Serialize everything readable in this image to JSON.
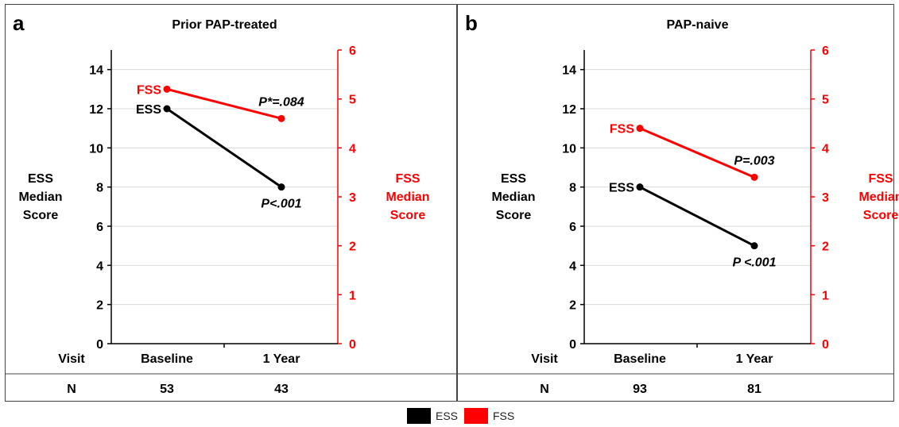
{
  "colors": {
    "ess": "#000000",
    "fss": "#ff0000",
    "grid": "#d9d9d9",
    "frame": "#444444"
  },
  "row_labels": {
    "visit": "Visit",
    "n": "N"
  },
  "legend": [
    {
      "name": "ESS",
      "color": "#000000"
    },
    {
      "name": "FSS",
      "color": "#ff0000"
    }
  ],
  "chart_data": [
    {
      "type": "line",
      "panel_letter": "a",
      "title": "Prior PAP-treated",
      "categories": [
        "Baseline",
        "1 Year"
      ],
      "n_values": [
        "53",
        "43"
      ],
      "left_axis": {
        "label_lines": [
          "ESS",
          "Median",
          "Score"
        ],
        "ylim": [
          0,
          15
        ],
        "ticks": [
          0,
          2,
          4,
          6,
          8,
          10,
          12,
          14
        ]
      },
      "right_axis": {
        "label_lines": [
          "FSS",
          "Median",
          "Score"
        ],
        "ylim": [
          0,
          6
        ],
        "ticks": [
          0,
          1,
          2,
          3,
          4,
          5,
          6
        ]
      },
      "grid": true,
      "series": [
        {
          "name": "ESS",
          "axis": "left",
          "values": [
            12,
            8
          ],
          "pvalue": "P<.001"
        },
        {
          "name": "FSS",
          "axis": "right",
          "values": [
            5.2,
            4.6
          ],
          "pvalue": "P*=.084"
        }
      ]
    },
    {
      "type": "line",
      "panel_letter": "b",
      "title": "PAP-naive",
      "categories": [
        "Baseline",
        "1 Year"
      ],
      "n_values": [
        "93",
        "81"
      ],
      "left_axis": {
        "label_lines": [
          "ESS",
          "Median",
          "Score"
        ],
        "ylim": [
          0,
          15
        ],
        "ticks": [
          0,
          2,
          4,
          6,
          8,
          10,
          12,
          14
        ]
      },
      "right_axis": {
        "label_lines": [
          "FSS",
          "Median",
          "Score"
        ],
        "ylim": [
          0,
          6
        ],
        "ticks": [
          0,
          1,
          2,
          3,
          4,
          5,
          6
        ]
      },
      "grid": true,
      "series": [
        {
          "name": "ESS",
          "axis": "left",
          "values": [
            8,
            5
          ],
          "pvalue": "P <.001"
        },
        {
          "name": "FSS",
          "axis": "right",
          "values": [
            4.4,
            3.4
          ],
          "pvalue": "P=.003"
        }
      ]
    }
  ]
}
